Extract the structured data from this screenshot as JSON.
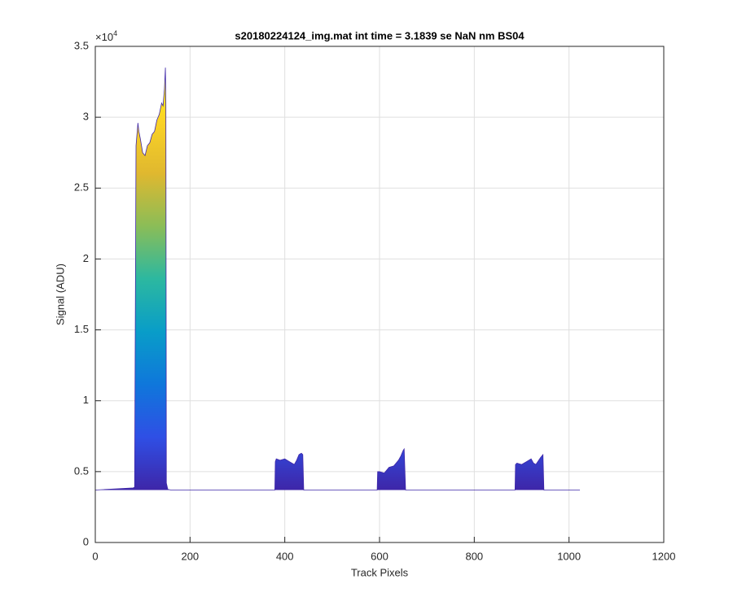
{
  "chart_data": {
    "type": "area",
    "title": "s20180224124_img.mat int time = 3.1839 se  NaN nm BS04",
    "x_label": "Track Pixels",
    "y_label": "Signal (ADU)",
    "y_multiplier_base": "×10",
    "y_multiplier_power": "4",
    "x": [
      0,
      80,
      83,
      86,
      90,
      92,
      95,
      100,
      105,
      110,
      115,
      120,
      125,
      130,
      135,
      140,
      143,
      146,
      148,
      149,
      150,
      153,
      160,
      375,
      379,
      380,
      382,
      390,
      400,
      410,
      420,
      425,
      430,
      435,
      438,
      440,
      590,
      595,
      596,
      600,
      610,
      620,
      630,
      640,
      645,
      650,
      652,
      655,
      880,
      886,
      887,
      890,
      900,
      910,
      915,
      920,
      925,
      930,
      940,
      945,
      947,
      1023
    ],
    "values": [
      3700,
      3850,
      3900,
      28000,
      29600,
      29000,
      28500,
      27500,
      27300,
      28000,
      28200,
      28800,
      29000,
      29800,
      30200,
      31000,
      30800,
      32000,
      33500,
      31000,
      4200,
      3750,
      3700,
      3700,
      3700,
      5700,
      5900,
      5800,
      5900,
      5700,
      5500,
      5800,
      6200,
      6300,
      6200,
      3700,
      3700,
      3700,
      5000,
      5000,
      4900,
      5300,
      5400,
      5800,
      6100,
      6500,
      6600,
      3700,
      3700,
      3700,
      5500,
      5600,
      5500,
      5700,
      5800,
      5900,
      5600,
      5500,
      6000,
      6200,
      3700,
      3700
    ],
    "colormap": [
      "#3e26a8",
      "#2f4fe5",
      "#0f77db",
      "#099dc8",
      "#2cb8a0",
      "#8bbd57",
      "#e0b82f",
      "#fbd325",
      "#f9fb0e"
    ],
    "xlim": [
      0,
      1200
    ],
    "xticks": [
      0,
      200,
      400,
      600,
      800,
      1000,
      1200
    ],
    "ylim": [
      0,
      35000
    ],
    "yticks": [
      {
        "value": 0,
        "label": "0"
      },
      {
        "value": 5000,
        "label": "0.5"
      },
      {
        "value": 10000,
        "label": "1"
      },
      {
        "value": 15000,
        "label": "1.5"
      },
      {
        "value": 20000,
        "label": "2"
      },
      {
        "value": 25000,
        "label": "2.5"
      },
      {
        "value": 30000,
        "label": "3"
      },
      {
        "value": 35000,
        "label": "3.5"
      }
    ],
    "grid": true
  }
}
